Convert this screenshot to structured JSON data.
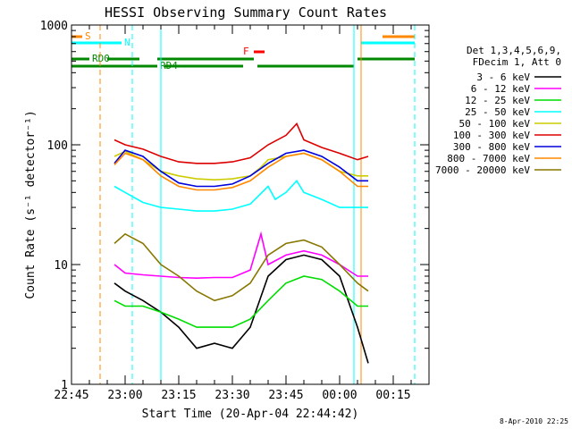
{
  "chart_data": {
    "type": "line",
    "title": "HESSI Observing Summary Count Rates",
    "xlabel": "Start Time (20-Apr-04 22:44:42)",
    "ylabel": "Count Rate (s⁻¹ detector⁻¹)",
    "y_scale": "log",
    "ylim": [
      1,
      1000
    ],
    "xlim": [
      "22:45",
      "00:25"
    ],
    "x_ticks": [
      "22:45",
      "23:00",
      "23:15",
      "23:30",
      "23:45",
      "00:00",
      "00:15"
    ],
    "y_ticks": [
      "1",
      "10",
      "100",
      "1000"
    ],
    "timestamp": "8-Apr-2010 22:25",
    "legend": {
      "placement": "right, outside plot",
      "header": [
        "Det 1,3,4,5,6,9,",
        "FDecim 1, Att 0"
      ]
    },
    "series": [
      {
        "name": "3 - 6 keV",
        "color": "#000000",
        "x": [
          "22:57",
          "23:00",
          "23:05",
          "23:10",
          "23:15",
          "23:20",
          "23:25",
          "23:30",
          "23:35",
          "23:40",
          "23:45",
          "23:50",
          "23:55",
          "00:00",
          "00:05",
          "00:08"
        ],
        "values": [
          7,
          6,
          5,
          4,
          3,
          2,
          2.2,
          2,
          3,
          8,
          11,
          12,
          11,
          8,
          3,
          1.5
        ]
      },
      {
        "name": "6 - 12 keV",
        "color": "#ff00ff",
        "x": [
          "22:57",
          "23:00",
          "23:05",
          "23:10",
          "23:15",
          "23:20",
          "23:25",
          "23:30",
          "23:35",
          "23:38",
          "23:40",
          "23:45",
          "23:50",
          "23:55",
          "00:00",
          "00:05",
          "00:08"
        ],
        "values": [
          10,
          8.5,
          8.2,
          8,
          7.8,
          7.7,
          7.8,
          7.8,
          9,
          18,
          10,
          12,
          13,
          12,
          10,
          8,
          8
        ]
      },
      {
        "name": "12 - 25 keV",
        "color": "#00dd00",
        "x": [
          "22:57",
          "23:00",
          "23:05",
          "23:10",
          "23:15",
          "23:20",
          "23:25",
          "23:30",
          "23:35",
          "23:40",
          "23:45",
          "23:50",
          "23:55",
          "00:00",
          "00:05",
          "00:08"
        ],
        "values": [
          5,
          4.5,
          4.5,
          4,
          3.5,
          3,
          3,
          3,
          3.5,
          5,
          7,
          8,
          7.5,
          6,
          4.5,
          4.5
        ]
      },
      {
        "name": "25 - 50 keV",
        "color": "#00ffff",
        "x": [
          "22:57",
          "23:00",
          "23:05",
          "23:10",
          "23:15",
          "23:20",
          "23:25",
          "23:30",
          "23:35",
          "23:40",
          "23:42",
          "23:45",
          "23:48",
          "23:50",
          "23:55",
          "00:00",
          "00:05",
          "00:08"
        ],
        "values": [
          45,
          40,
          33,
          30,
          29,
          28,
          28,
          29,
          32,
          45,
          35,
          40,
          50,
          40,
          35,
          30,
          30,
          30
        ]
      },
      {
        "name": "50 - 100 keV",
        "color": "#cccc00",
        "x": [
          "22:57",
          "23:00",
          "23:05",
          "23:10",
          "23:15",
          "23:20",
          "23:25",
          "23:30",
          "23:35",
          "23:38",
          "23:40",
          "23:45",
          "23:50",
          "23:55",
          "00:00",
          "00:05",
          "00:08"
        ],
        "values": [
          80,
          88,
          75,
          60,
          55,
          52,
          51,
          52,
          55,
          65,
          75,
          80,
          85,
          75,
          60,
          55,
          55
        ]
      },
      {
        "name": "100 - 300 keV",
        "color": "#dd0000",
        "x": [
          "22:57",
          "23:00",
          "23:05",
          "23:10",
          "23:15",
          "23:20",
          "23:25",
          "23:30",
          "23:35",
          "23:40",
          "23:45",
          "23:48",
          "23:50",
          "23:55",
          "00:00",
          "00:05",
          "00:08"
        ],
        "values": [
          110,
          100,
          92,
          80,
          72,
          70,
          70,
          72,
          78,
          100,
          120,
          150,
          110,
          95,
          85,
          75,
          80
        ]
      },
      {
        "name": "300 - 800 keV",
        "color": "#0000dd",
        "x": [
          "22:57",
          "23:00",
          "23:05",
          "23:10",
          "23:15",
          "23:20",
          "23:25",
          "23:30",
          "23:35",
          "23:40",
          "23:45",
          "23:50",
          "23:55",
          "00:00",
          "00:05",
          "00:08"
        ],
        "values": [
          70,
          90,
          80,
          60,
          48,
          45,
          45,
          47,
          55,
          70,
          85,
          90,
          80,
          65,
          50,
          50
        ]
      },
      {
        "name": "800 - 7000 keV",
        "color": "#ff8800",
        "x": [
          "22:57",
          "23:00",
          "23:05",
          "23:10",
          "23:15",
          "23:20",
          "23:25",
          "23:30",
          "23:35",
          "23:40",
          "23:45",
          "23:50",
          "23:55",
          "00:00",
          "00:05",
          "00:08"
        ],
        "values": [
          68,
          85,
          75,
          55,
          45,
          42,
          42,
          44,
          50,
          65,
          80,
          85,
          75,
          60,
          45,
          45
        ]
      },
      {
        "name": "7000 - 20000 keV",
        "color": "#887700",
        "x": [
          "22:57",
          "23:00",
          "23:05",
          "23:10",
          "23:15",
          "23:20",
          "23:25",
          "23:30",
          "23:35",
          "23:40",
          "23:45",
          "23:50",
          "23:55",
          "00:00",
          "00:05",
          "00:08"
        ],
        "values": [
          15,
          18,
          15,
          10,
          8,
          6,
          5,
          5.5,
          7,
          12,
          15,
          16,
          14,
          10,
          7,
          6
        ]
      }
    ],
    "flag_bars": [
      {
        "label": "S",
        "color": "#ff8800",
        "segments": [
          [
            "22:45",
            "22:48"
          ],
          [
            "00:12",
            "00:21"
          ]
        ]
      },
      {
        "label": "N",
        "color": "#00ffff",
        "segments": [
          [
            "22:45",
            "22:59"
          ],
          [
            "00:06",
            "00:21"
          ]
        ]
      },
      {
        "label": "F",
        "color": "#ff0000",
        "segments": [
          [
            "23:36",
            "23:39"
          ]
        ]
      },
      {
        "label": "RD0",
        "color": "#008800",
        "segments": [
          [
            "22:45",
            "22:50"
          ],
          [
            "22:55",
            "23:04"
          ],
          [
            "23:09",
            "23:36"
          ],
          [
            "00:05",
            "00:21"
          ]
        ]
      },
      {
        "label": "RD4",
        "color": "#008800",
        "segments": [
          [
            "22:45",
            "23:09"
          ],
          [
            "23:11",
            "23:33"
          ],
          [
            "23:37",
            "00:04"
          ]
        ]
      }
    ],
    "markers": [
      {
        "color": "#ff8800",
        "style": "dashed",
        "time": "22:53"
      },
      {
        "color": "#00ffff",
        "style": "dashed",
        "time": "23:02"
      },
      {
        "color": "#00ffff",
        "style": "solid",
        "time": "23:10"
      },
      {
        "color": "#00ffff",
        "style": "solid",
        "time": "00:04"
      },
      {
        "color": "#ff8800",
        "style": "solid",
        "time": "00:06"
      },
      {
        "color": "#00ffff",
        "style": "dashed",
        "time": "00:21"
      }
    ]
  }
}
